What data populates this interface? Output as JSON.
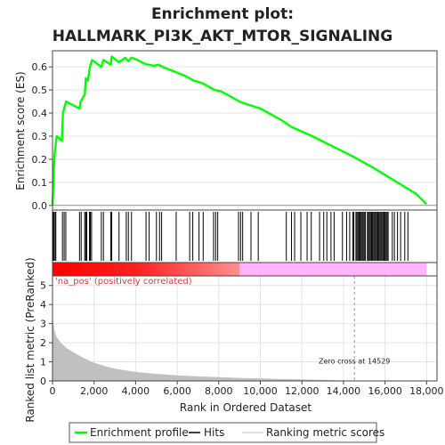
{
  "page": {
    "title_line1": "Enrichment plot:",
    "title_line2": "HALLMARK_PI3K_AKT_MTOR_SIGNALING"
  },
  "chart_data": [
    {
      "type": "line",
      "panel": "enrichment",
      "ylabel": "Enrichment score (ES)",
      "ylim": [
        -0.02,
        0.67
      ],
      "yticks": [
        0.0,
        0.1,
        0.2,
        0.3,
        0.4,
        0.5,
        0.6
      ],
      "ytick_labels": [
        "0.0",
        "0.1",
        "0.2",
        "0.3",
        "0.4",
        "0.5",
        "0.6"
      ],
      "xlim": [
        0,
        18500
      ],
      "grid": true,
      "series": [
        {
          "name": "Enrichment profile",
          "color": "#00ff00",
          "x": [
            0,
            50,
            100,
            200,
            450,
            500,
            650,
            1300,
            1350,
            1550,
            1600,
            1700,
            1800,
            1900,
            2350,
            2450,
            2800,
            2850,
            3200,
            3500,
            3650,
            3800,
            4100,
            4400,
            4600,
            4900,
            5100,
            5300,
            6000,
            6400,
            6800,
            7200,
            7800,
            8100,
            9000,
            9300,
            10000,
            11000,
            11500,
            12500,
            13500,
            14500,
            15500,
            16500,
            17500,
            18000
          ],
          "y": [
            0.0,
            0.12,
            0.22,
            0.3,
            0.28,
            0.4,
            0.45,
            0.42,
            0.45,
            0.48,
            0.55,
            0.54,
            0.6,
            0.63,
            0.6,
            0.63,
            0.61,
            0.645,
            0.62,
            0.64,
            0.625,
            0.64,
            0.63,
            0.615,
            0.61,
            0.605,
            0.61,
            0.6,
            0.575,
            0.56,
            0.54,
            0.53,
            0.5,
            0.495,
            0.45,
            0.44,
            0.42,
            0.37,
            0.34,
            0.3,
            0.255,
            0.21,
            0.16,
            0.105,
            0.05,
            0.005
          ]
        }
      ]
    },
    {
      "type": "scatter",
      "panel": "hits",
      "series": [
        {
          "name": "Hits",
          "color": "#000000",
          "x": [
            20,
            60,
            120,
            160,
            480,
            560,
            640,
            1300,
            1380,
            1550,
            1600,
            1650,
            1780,
            1820,
            1880,
            2350,
            2450,
            2800,
            2850,
            3200,
            3550,
            3650,
            3800,
            4500,
            4650,
            5000,
            5150,
            5250,
            5950,
            6600,
            6750,
            7050,
            7250,
            7750,
            7850,
            7950,
            8950,
            9050,
            9150,
            9550,
            9900,
            11250,
            11500,
            11650,
            11950,
            12250,
            12450,
            12850,
            13050,
            13200,
            13400,
            13550,
            13950,
            14150,
            14300,
            14450,
            14500,
            14600,
            14650,
            14700,
            14750,
            14800,
            14850,
            14900,
            14950,
            15000,
            15050,
            15150,
            15200,
            15250,
            15300,
            15350,
            15400,
            15450,
            15500,
            15550,
            15600,
            15650,
            15700,
            15750,
            15800,
            15850,
            15900,
            15950,
            16000,
            16050,
            16100,
            16150,
            16350,
            16450,
            16600,
            16750,
            16950,
            17100
          ]
        }
      ]
    },
    {
      "type": "area",
      "panel": "ranked-metric",
      "ylabel": "Ranked list metric (PreRanked)",
      "xlabel": "Rank in Ordered Dataset",
      "ylim": [
        0,
        5.5
      ],
      "yticks": [
        0,
        1,
        2,
        3,
        4,
        5
      ],
      "ytick_labels": [
        "0",
        "1",
        "2",
        "3",
        "4",
        "5"
      ],
      "xticks": [
        0,
        2000,
        4000,
        6000,
        8000,
        10000,
        12000,
        14000,
        16000,
        18000
      ],
      "xtick_labels": [
        "0",
        "2,000",
        "4,000",
        "6,000",
        "8,000",
        "10,000",
        "12,000",
        "14,000",
        "16,000",
        "18,000"
      ],
      "xlim": [
        0,
        18500
      ],
      "grid": true,
      "series": [
        {
          "name": "Ranking metric scores",
          "color": "#c0c0c0",
          "x": [
            0,
            20,
            80,
            200,
            400,
            700,
            1000,
            1500,
            2000,
            2500,
            3000,
            4000,
            5000,
            6000,
            7000,
            8000,
            9000,
            10000,
            11000,
            12000,
            13000,
            14000,
            14529,
            15000,
            16000,
            17000,
            18000
          ],
          "y": [
            5.3,
            3.3,
            2.7,
            2.3,
            2.0,
            1.7,
            1.5,
            1.2,
            0.95,
            0.78,
            0.64,
            0.47,
            0.37,
            0.29,
            0.24,
            0.2,
            0.16,
            0.13,
            0.1,
            0.08,
            0.05,
            0.025,
            0.0,
            0.0,
            0.0,
            0.0,
            0.0
          ]
        }
      ],
      "annotations": {
        "positive_label": "'na_pos' (positively correlated)",
        "zero_cross_label": "Zero cross at 14529",
        "zero_cross_x": 14529
      }
    }
  ],
  "legend": {
    "items": [
      {
        "label": "Enrichment profile",
        "color": "#00ff00"
      },
      {
        "label": "Hits",
        "color": "#000000"
      },
      {
        "label": "Ranking metric scores",
        "color": "#c0c0c0"
      }
    ]
  },
  "colors": {
    "bar_positive": "#ff0000",
    "bar_negative": "#ffb4ff",
    "frame": "#444444",
    "grid": "#e4e4e4"
  }
}
